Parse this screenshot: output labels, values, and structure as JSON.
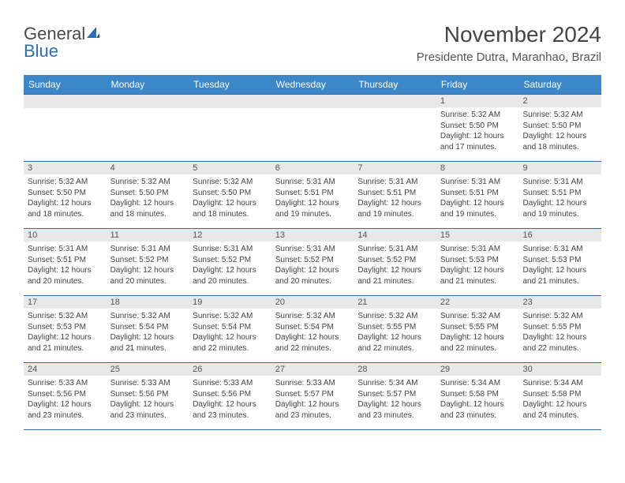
{
  "logo": {
    "word1": "General",
    "word2": "Blue",
    "sail_color": "#2a6db5"
  },
  "title": "November 2024",
  "location": "Presidente Dutra, Maranhao, Brazil",
  "colors": {
    "header_bg": "#3b87c8",
    "border": "#2a6db5",
    "daynum_bg": "#e8e8e8",
    "text": "#444444"
  },
  "days_of_week": [
    "Sunday",
    "Monday",
    "Tuesday",
    "Wednesday",
    "Thursday",
    "Friday",
    "Saturday"
  ],
  "weeks": [
    [
      {
        "num": "",
        "sunrise": "",
        "sunset": "",
        "daylight": ""
      },
      {
        "num": "",
        "sunrise": "",
        "sunset": "",
        "daylight": ""
      },
      {
        "num": "",
        "sunrise": "",
        "sunset": "",
        "daylight": ""
      },
      {
        "num": "",
        "sunrise": "",
        "sunset": "",
        "daylight": ""
      },
      {
        "num": "",
        "sunrise": "",
        "sunset": "",
        "daylight": ""
      },
      {
        "num": "1",
        "sunrise": "Sunrise: 5:32 AM",
        "sunset": "Sunset: 5:50 PM",
        "daylight": "Daylight: 12 hours and 17 minutes."
      },
      {
        "num": "2",
        "sunrise": "Sunrise: 5:32 AM",
        "sunset": "Sunset: 5:50 PM",
        "daylight": "Daylight: 12 hours and 18 minutes."
      }
    ],
    [
      {
        "num": "3",
        "sunrise": "Sunrise: 5:32 AM",
        "sunset": "Sunset: 5:50 PM",
        "daylight": "Daylight: 12 hours and 18 minutes."
      },
      {
        "num": "4",
        "sunrise": "Sunrise: 5:32 AM",
        "sunset": "Sunset: 5:50 PM",
        "daylight": "Daylight: 12 hours and 18 minutes."
      },
      {
        "num": "5",
        "sunrise": "Sunrise: 5:32 AM",
        "sunset": "Sunset: 5:50 PM",
        "daylight": "Daylight: 12 hours and 18 minutes."
      },
      {
        "num": "6",
        "sunrise": "Sunrise: 5:31 AM",
        "sunset": "Sunset: 5:51 PM",
        "daylight": "Daylight: 12 hours and 19 minutes."
      },
      {
        "num": "7",
        "sunrise": "Sunrise: 5:31 AM",
        "sunset": "Sunset: 5:51 PM",
        "daylight": "Daylight: 12 hours and 19 minutes."
      },
      {
        "num": "8",
        "sunrise": "Sunrise: 5:31 AM",
        "sunset": "Sunset: 5:51 PM",
        "daylight": "Daylight: 12 hours and 19 minutes."
      },
      {
        "num": "9",
        "sunrise": "Sunrise: 5:31 AM",
        "sunset": "Sunset: 5:51 PM",
        "daylight": "Daylight: 12 hours and 19 minutes."
      }
    ],
    [
      {
        "num": "10",
        "sunrise": "Sunrise: 5:31 AM",
        "sunset": "Sunset: 5:51 PM",
        "daylight": "Daylight: 12 hours and 20 minutes."
      },
      {
        "num": "11",
        "sunrise": "Sunrise: 5:31 AM",
        "sunset": "Sunset: 5:52 PM",
        "daylight": "Daylight: 12 hours and 20 minutes."
      },
      {
        "num": "12",
        "sunrise": "Sunrise: 5:31 AM",
        "sunset": "Sunset: 5:52 PM",
        "daylight": "Daylight: 12 hours and 20 minutes."
      },
      {
        "num": "13",
        "sunrise": "Sunrise: 5:31 AM",
        "sunset": "Sunset: 5:52 PM",
        "daylight": "Daylight: 12 hours and 20 minutes."
      },
      {
        "num": "14",
        "sunrise": "Sunrise: 5:31 AM",
        "sunset": "Sunset: 5:52 PM",
        "daylight": "Daylight: 12 hours and 21 minutes."
      },
      {
        "num": "15",
        "sunrise": "Sunrise: 5:31 AM",
        "sunset": "Sunset: 5:53 PM",
        "daylight": "Daylight: 12 hours and 21 minutes."
      },
      {
        "num": "16",
        "sunrise": "Sunrise: 5:31 AM",
        "sunset": "Sunset: 5:53 PM",
        "daylight": "Daylight: 12 hours and 21 minutes."
      }
    ],
    [
      {
        "num": "17",
        "sunrise": "Sunrise: 5:32 AM",
        "sunset": "Sunset: 5:53 PM",
        "daylight": "Daylight: 12 hours and 21 minutes."
      },
      {
        "num": "18",
        "sunrise": "Sunrise: 5:32 AM",
        "sunset": "Sunset: 5:54 PM",
        "daylight": "Daylight: 12 hours and 21 minutes."
      },
      {
        "num": "19",
        "sunrise": "Sunrise: 5:32 AM",
        "sunset": "Sunset: 5:54 PM",
        "daylight": "Daylight: 12 hours and 22 minutes."
      },
      {
        "num": "20",
        "sunrise": "Sunrise: 5:32 AM",
        "sunset": "Sunset: 5:54 PM",
        "daylight": "Daylight: 12 hours and 22 minutes."
      },
      {
        "num": "21",
        "sunrise": "Sunrise: 5:32 AM",
        "sunset": "Sunset: 5:55 PM",
        "daylight": "Daylight: 12 hours and 22 minutes."
      },
      {
        "num": "22",
        "sunrise": "Sunrise: 5:32 AM",
        "sunset": "Sunset: 5:55 PM",
        "daylight": "Daylight: 12 hours and 22 minutes."
      },
      {
        "num": "23",
        "sunrise": "Sunrise: 5:32 AM",
        "sunset": "Sunset: 5:55 PM",
        "daylight": "Daylight: 12 hours and 22 minutes."
      }
    ],
    [
      {
        "num": "24",
        "sunrise": "Sunrise: 5:33 AM",
        "sunset": "Sunset: 5:56 PM",
        "daylight": "Daylight: 12 hours and 23 minutes."
      },
      {
        "num": "25",
        "sunrise": "Sunrise: 5:33 AM",
        "sunset": "Sunset: 5:56 PM",
        "daylight": "Daylight: 12 hours and 23 minutes."
      },
      {
        "num": "26",
        "sunrise": "Sunrise: 5:33 AM",
        "sunset": "Sunset: 5:56 PM",
        "daylight": "Daylight: 12 hours and 23 minutes."
      },
      {
        "num": "27",
        "sunrise": "Sunrise: 5:33 AM",
        "sunset": "Sunset: 5:57 PM",
        "daylight": "Daylight: 12 hours and 23 minutes."
      },
      {
        "num": "28",
        "sunrise": "Sunrise: 5:34 AM",
        "sunset": "Sunset: 5:57 PM",
        "daylight": "Daylight: 12 hours and 23 minutes."
      },
      {
        "num": "29",
        "sunrise": "Sunrise: 5:34 AM",
        "sunset": "Sunset: 5:58 PM",
        "daylight": "Daylight: 12 hours and 23 minutes."
      },
      {
        "num": "30",
        "sunrise": "Sunrise: 5:34 AM",
        "sunset": "Sunset: 5:58 PM",
        "daylight": "Daylight: 12 hours and 24 minutes."
      }
    ]
  ]
}
